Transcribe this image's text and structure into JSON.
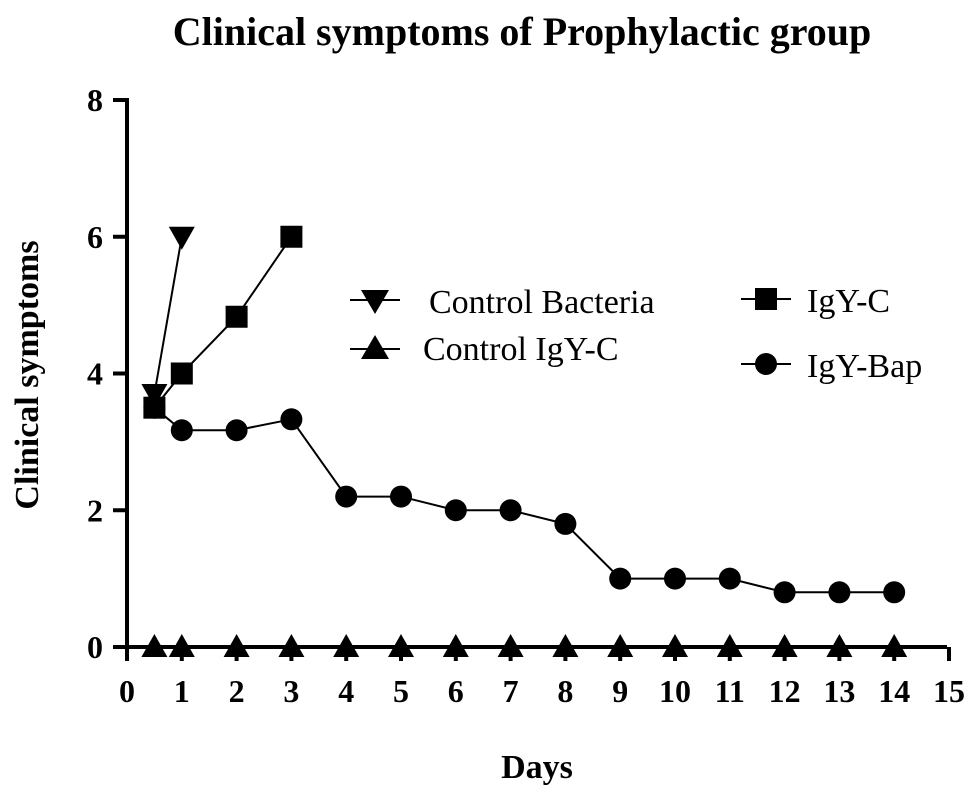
{
  "chart_data": {
    "type": "line",
    "title": "Clinical symptoms of Prophylactic group",
    "xlabel": "Days",
    "ylabel": "Clinical symptoms",
    "xlim": [
      0,
      15
    ],
    "ylim": [
      0,
      8
    ],
    "xticks": [
      "0",
      "1",
      "2",
      "3",
      "4",
      "5",
      "6",
      "7",
      "8",
      "9",
      "10",
      "11",
      "12",
      "13",
      "14",
      "15"
    ],
    "yticks": [
      "0",
      "2",
      "4",
      "6",
      "8"
    ],
    "grid": false,
    "legend": {
      "placement": "right",
      "entries": [
        "Control Bacteria",
        "Control IgY-C",
        "IgY-C",
        "IgY-Bap"
      ]
    },
    "series": [
      {
        "name": "Control Bacteria",
        "marker": "triangle-down",
        "x": [
          0.5,
          1
        ],
        "y": [
          3.7,
          6.0
        ]
      },
      {
        "name": "Control IgY-C",
        "marker": "triangle-up",
        "x": [
          0.5,
          1,
          2,
          3,
          4,
          5,
          6,
          7,
          8,
          9,
          10,
          11,
          12,
          13,
          14
        ],
        "y": [
          0,
          0,
          0,
          0,
          0,
          0,
          0,
          0,
          0,
          0,
          0,
          0,
          0,
          0,
          0
        ]
      },
      {
        "name": "IgY-C",
        "marker": "square",
        "x": [
          0.5,
          1,
          2,
          3
        ],
        "y": [
          3.5,
          4.0,
          4.83,
          6.0
        ]
      },
      {
        "name": "IgY-Bap",
        "marker": "circle",
        "x": [
          0.5,
          1,
          2,
          3,
          4,
          5,
          6,
          7,
          8,
          9,
          10,
          11,
          12,
          13,
          14
        ],
        "y": [
          3.5,
          3.17,
          3.17,
          3.33,
          2.2,
          2.2,
          2.0,
          2.0,
          1.8,
          1.0,
          1.0,
          1.0,
          0.8,
          0.8,
          0.8
        ]
      }
    ]
  }
}
